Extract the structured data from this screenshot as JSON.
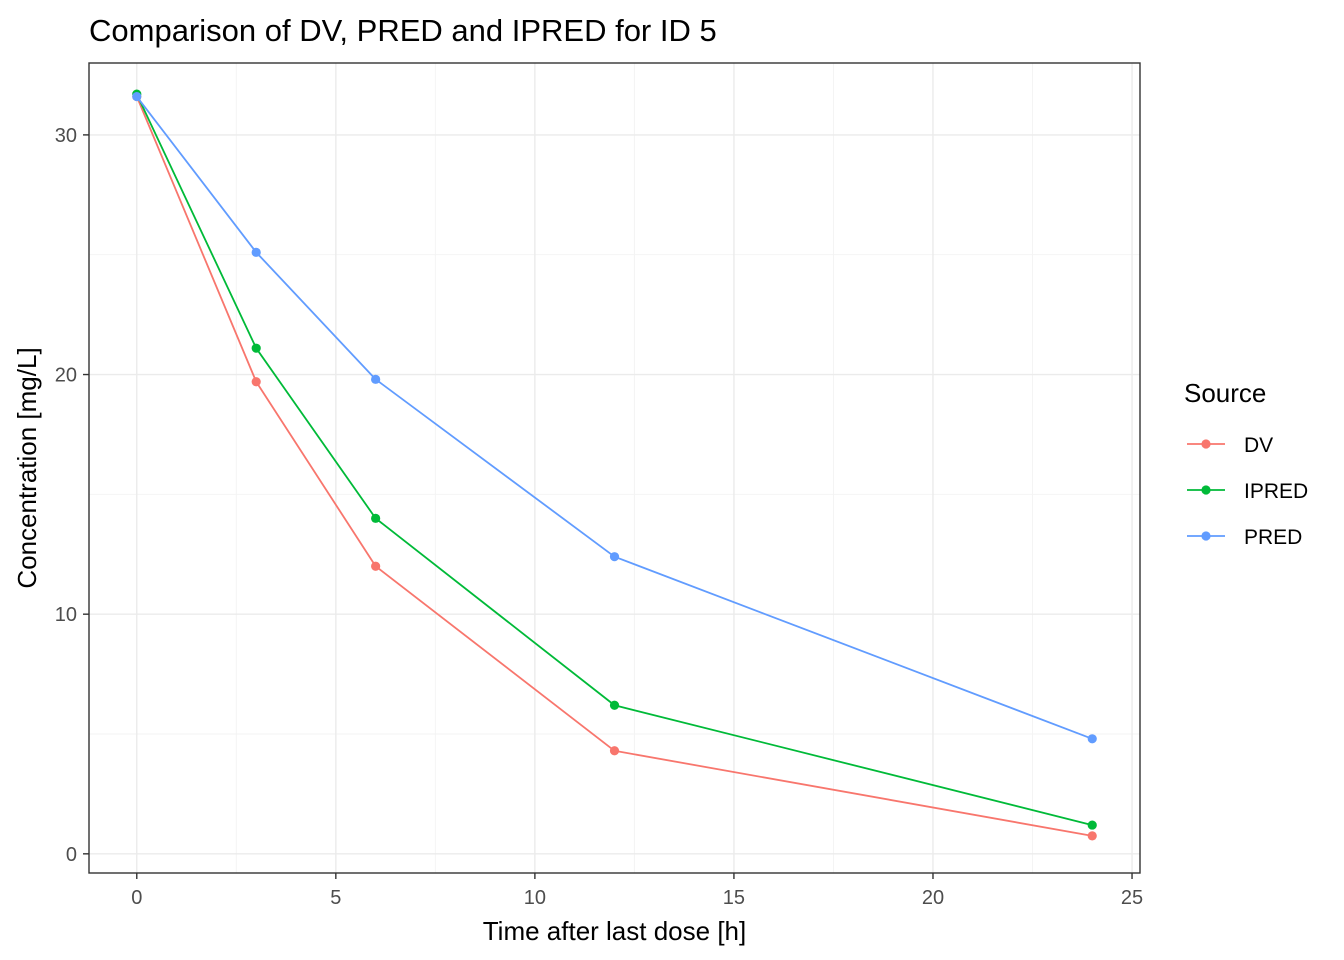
{
  "chart_data": {
    "type": "line",
    "title": "Comparison of DV, PRED and IPRED for ID 5",
    "xlabel": "Time after last dose [h]",
    "ylabel": "Concentration [mg/L]",
    "x": [
      0,
      3,
      6,
      12,
      24
    ],
    "xlim": [
      -1.2,
      25.2
    ],
    "ylim": [
      -0.8,
      33.0
    ],
    "x_ticks": [
      0,
      5,
      10,
      15,
      20,
      25
    ],
    "y_ticks": [
      0,
      10,
      20,
      30
    ],
    "x_tick_labels": [
      "0",
      "5",
      "10",
      "15",
      "20",
      "25"
    ],
    "y_tick_labels": [
      "0",
      "10",
      "20",
      "30"
    ],
    "grid": true,
    "legend": {
      "title": "Source",
      "position": "right"
    },
    "series": [
      {
        "name": "DV",
        "color": "#F8766D",
        "values": [
          31.6,
          19.7,
          12.0,
          4.3,
          0.75
        ]
      },
      {
        "name": "IPRED",
        "color": "#00BA38",
        "values": [
          31.7,
          21.1,
          14.0,
          6.2,
          1.2
        ]
      },
      {
        "name": "PRED",
        "color": "#619CFF",
        "values": [
          31.6,
          25.1,
          19.8,
          12.4,
          4.8
        ]
      }
    ]
  }
}
